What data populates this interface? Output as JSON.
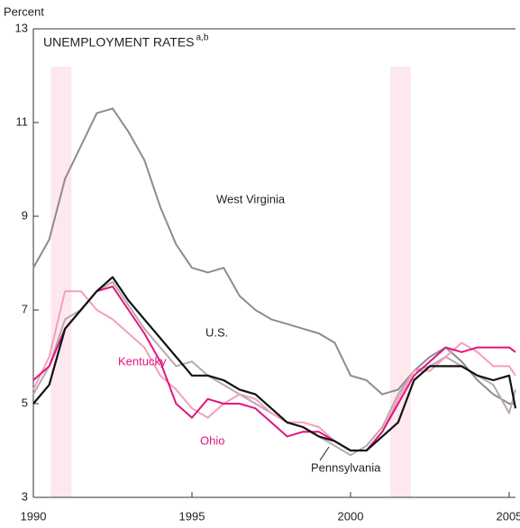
{
  "chart_data": {
    "type": "line",
    "title": "UNEMPLOYMENT RATES",
    "title_superscript": "a,b",
    "y_label": "Percent",
    "x": [
      1990,
      1990.5,
      1991,
      1991.5,
      1992,
      1992.5,
      1993,
      1993.5,
      1994,
      1994.5,
      1995,
      1995.5,
      1996,
      1996.5,
      1997,
      1997.5,
      1998,
      1998.5,
      1999,
      1999.5,
      2000,
      2000.5,
      2001,
      2001.5,
      2002,
      2002.5,
      2003,
      2003.5,
      2004,
      2004.5,
      2005,
      2005.2
    ],
    "series": [
      {
        "name": "West Virginia",
        "color": "#8c8c8c",
        "values": [
          7.9,
          8.5,
          9.8,
          10.5,
          11.2,
          11.3,
          10.8,
          10.2,
          9.2,
          8.4,
          7.9,
          7.8,
          7.9,
          7.3,
          7.0,
          6.8,
          6.7,
          6.6,
          6.5,
          6.3,
          5.6,
          5.5,
          5.2,
          5.3,
          5.7,
          6.0,
          6.2,
          5.9,
          5.5,
          5.2,
          5.0,
          5.0
        ]
      },
      {
        "name": "Pennsylvania",
        "color": "#b8a8b0",
        "values": [
          5.2,
          5.8,
          6.8,
          7.0,
          7.4,
          7.6,
          7.1,
          6.6,
          6.2,
          5.8,
          5.9,
          5.6,
          5.4,
          5.2,
          5.0,
          4.8,
          4.6,
          4.5,
          4.3,
          4.1,
          3.9,
          4.1,
          4.5,
          5.2,
          5.7,
          5.8,
          6.0,
          5.8,
          5.6,
          5.4,
          4.8,
          5.3
        ]
      },
      {
        "name": "Ohio",
        "color": "#f2a0b8",
        "values": [
          5.3,
          6.0,
          7.4,
          7.4,
          7.0,
          6.8,
          6.5,
          6.2,
          5.6,
          5.3,
          4.9,
          4.7,
          5.0,
          5.2,
          5.1,
          4.8,
          4.6,
          4.6,
          4.5,
          4.2,
          4.0,
          4.0,
          4.4,
          5.1,
          5.7,
          5.7,
          6.0,
          6.3,
          6.1,
          5.8,
          5.8,
          5.6
        ]
      },
      {
        "name": "Kentucky",
        "color": "#e0157f",
        "values": [
          5.5,
          5.8,
          6.6,
          7.0,
          7.4,
          7.5,
          7.0,
          6.5,
          5.9,
          5.0,
          4.7,
          5.1,
          5.0,
          5.0,
          4.9,
          4.6,
          4.3,
          4.4,
          4.4,
          4.2,
          4.0,
          4.0,
          4.4,
          5.0,
          5.6,
          5.9,
          6.2,
          6.1,
          6.2,
          6.2,
          6.2,
          6.1
        ]
      },
      {
        "name": "U.S.",
        "color": "#111111",
        "values": [
          5.0,
          5.4,
          6.6,
          7.0,
          7.4,
          7.7,
          7.2,
          6.8,
          6.4,
          6.0,
          5.6,
          5.6,
          5.5,
          5.3,
          5.2,
          4.9,
          4.6,
          4.5,
          4.3,
          4.2,
          4.0,
          4.0,
          4.3,
          4.6,
          5.5,
          5.8,
          5.8,
          5.8,
          5.6,
          5.5,
          5.6,
          4.9
        ]
      }
    ],
    "shaded_ranges": [
      [
        1990.55,
        1991.2
      ],
      [
        2001.25,
        2001.9
      ]
    ],
    "shade_color": "#fde8ee",
    "xlim": [
      1990,
      2005.2
    ],
    "xticks": [
      1990,
      1995,
      2000,
      2005
    ],
    "ylim": [
      3,
      13
    ],
    "yticks": [
      3,
      5,
      7,
      9,
      11,
      13
    ]
  }
}
